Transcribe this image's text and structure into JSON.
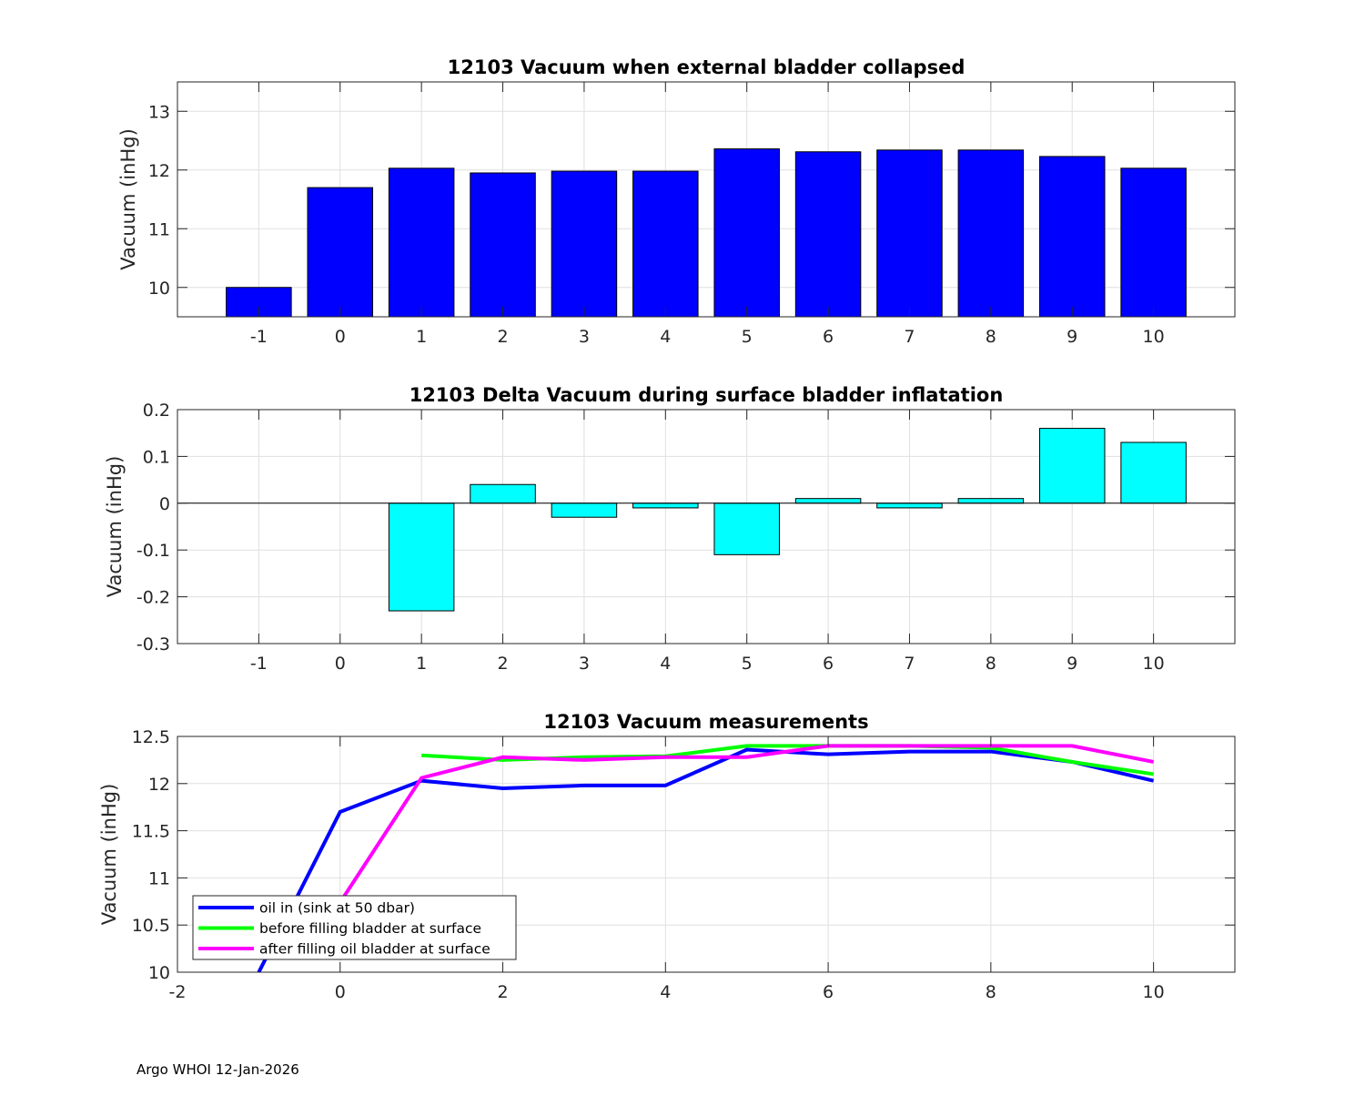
{
  "chart_data": [
    {
      "type": "bar",
      "title": "12103 Vacuum when external bladder collapsed",
      "xlabel": "",
      "ylabel": "Vacuum (inHg)",
      "xlim": [
        -2,
        11
      ],
      "ylim": [
        9.5,
        13.5
      ],
      "xticks": [
        "-1",
        "0",
        "1",
        "2",
        "3",
        "4",
        "5",
        "6",
        "7",
        "8",
        "9",
        "10"
      ],
      "yticks": [
        "10",
        "11",
        "12",
        "13"
      ],
      "grid": true,
      "color": "#0000ff",
      "categories": [
        -1,
        0,
        1,
        2,
        3,
        4,
        5,
        6,
        7,
        8,
        9,
        10
      ],
      "values": [
        10.0,
        11.7,
        12.03,
        11.95,
        11.98,
        11.98,
        12.36,
        12.31,
        12.34,
        12.34,
        12.23,
        12.03
      ]
    },
    {
      "type": "bar",
      "title": "12103 Delta Vacuum during surface bladder inflatation",
      "xlabel": "",
      "ylabel": "Vacuum (inHg)",
      "xlim": [
        -2,
        11
      ],
      "ylim": [
        -0.3,
        0.2
      ],
      "xticks": [
        "-1",
        "0",
        "1",
        "2",
        "3",
        "4",
        "5",
        "6",
        "7",
        "8",
        "9",
        "10"
      ],
      "yticks": [
        "-0.3",
        "-0.2",
        "-0.1",
        "0",
        "0.1",
        "0.2"
      ],
      "grid": true,
      "color": "#00ffff",
      "categories": [
        -1,
        0,
        1,
        2,
        3,
        4,
        5,
        6,
        7,
        8,
        9,
        10
      ],
      "values": [
        null,
        null,
        -0.23,
        0.04,
        -0.03,
        -0.01,
        -0.11,
        0.01,
        -0.01,
        0.01,
        0.16,
        0.13
      ]
    },
    {
      "type": "line",
      "title": "12103 Vacuum measurements",
      "xlabel": "",
      "ylabel": "Vacuum (inHg)",
      "xlim": [
        -2,
        11
      ],
      "ylim": [
        10,
        12.5
      ],
      "xticks": [
        "-2",
        "0",
        "2",
        "4",
        "6",
        "8",
        "10"
      ],
      "yticks": [
        "10",
        "10.5",
        "11",
        "11.5",
        "12",
        "12.5"
      ],
      "grid": true,
      "legend_position": "bottom-left",
      "series": [
        {
          "name": "oil in (sink at 50 dbar)",
          "color": "#0000ff",
          "x": [
            -1,
            0,
            1,
            2,
            3,
            4,
            5,
            6,
            7,
            8,
            9,
            10
          ],
          "y": [
            10.0,
            11.7,
            12.03,
            11.95,
            11.98,
            11.98,
            12.36,
            12.31,
            12.34,
            12.34,
            12.23,
            12.03
          ]
        },
        {
          "name": "before filling bladder at surface",
          "color": "#00ff00",
          "x": [
            1,
            2,
            3,
            4,
            5,
            6,
            7,
            8,
            9,
            10
          ],
          "y": [
            12.3,
            12.25,
            12.28,
            12.29,
            12.4,
            12.4,
            12.4,
            12.38,
            12.23,
            12.1
          ]
        },
        {
          "name": "after filling oil bladder at surface",
          "color": "#ff00ff",
          "x": [
            0,
            1,
            2,
            3,
            4,
            5,
            6,
            7,
            8,
            9,
            10
          ],
          "y": [
            10.74,
            12.06,
            12.28,
            12.25,
            12.28,
            12.28,
            12.4,
            12.4,
            12.4,
            12.4,
            12.23
          ]
        }
      ]
    }
  ],
  "footer": "Argo WHOI 12-Jan-2026"
}
